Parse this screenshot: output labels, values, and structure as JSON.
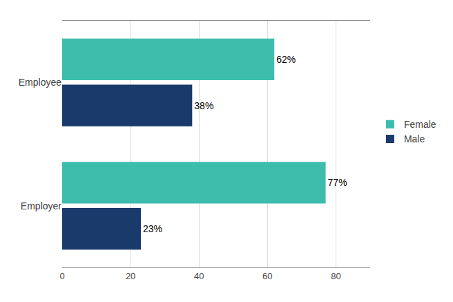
{
  "chart_data": {
    "type": "bar",
    "orientation": "horizontal",
    "categories": [
      "Employer",
      "Employee"
    ],
    "series": [
      {
        "name": "Female",
        "color": "#3dbdac",
        "values": [
          77,
          62
        ],
        "value_labels": [
          "77%",
          "62%"
        ]
      },
      {
        "name": "Male",
        "color": "#1a3a6b",
        "values": [
          23,
          38
        ],
        "value_labels": [
          "23%",
          "38%"
        ]
      }
    ],
    "xlim": [
      0,
      90
    ],
    "xticks": [
      0,
      20,
      40,
      60,
      80
    ],
    "grid": true,
    "legend": "right",
    "data_labels": true
  }
}
